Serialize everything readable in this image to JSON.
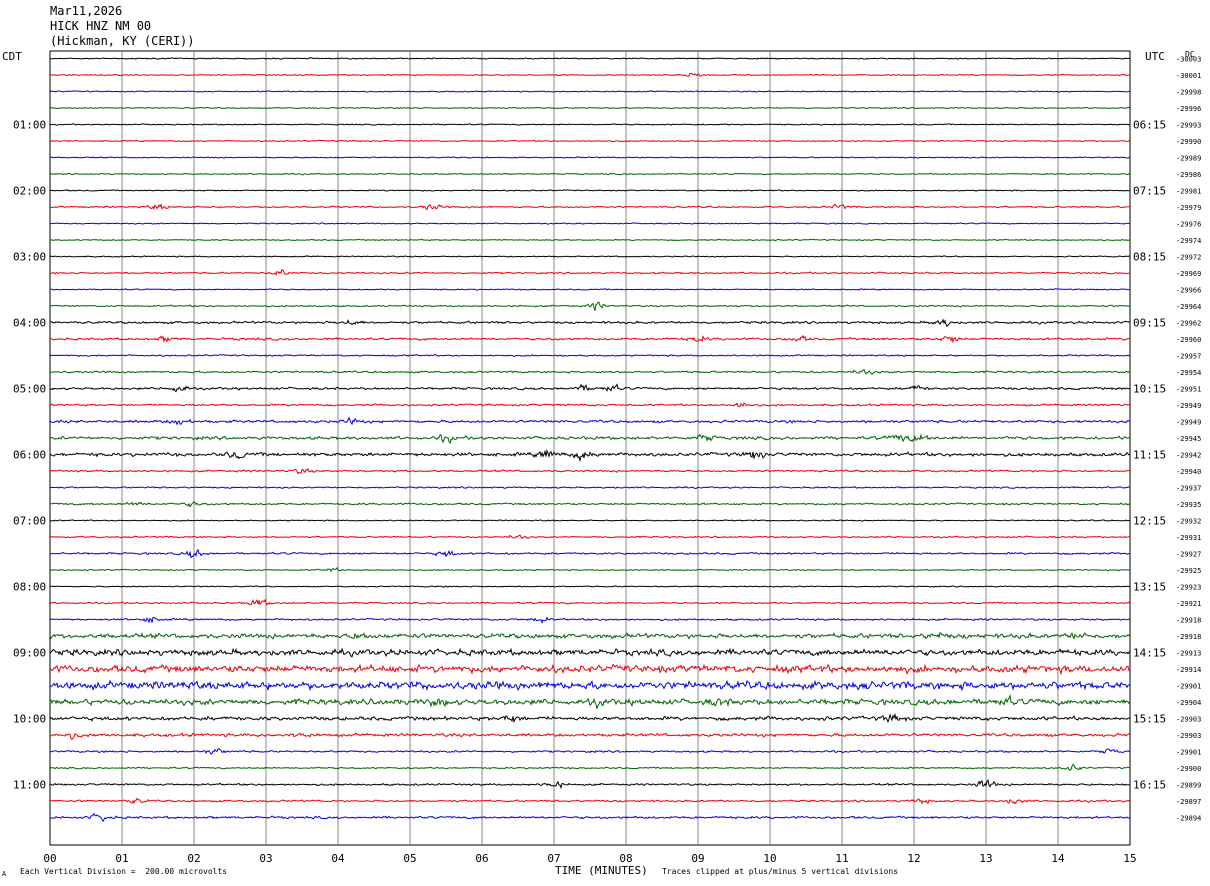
{
  "header": {
    "date": "Mar11,2026",
    "station": "HICK HNZ NM 00",
    "location": "(Hickman, KY (CERI))"
  },
  "left_tz": "CDT",
  "right_tz": "UTC",
  "dc_label": "DC",
  "footer": {
    "scale": "Each Vertical Division =  200.00 microvolts",
    "xtitle": "TIME (MINUTES)",
    "clip": "Traces clipped at plus/minus 5 vertical divisions",
    "corner": "A"
  },
  "colors": {
    "traces": [
      "#000000",
      "#e8000b",
      "#0000e6",
      "#006400"
    ],
    "grid": "#888888"
  },
  "chart_data": {
    "type": "line",
    "title": "",
    "xlabel": "TIME (MINUTES)",
    "ylabel": "",
    "x_ticks": [
      "00",
      "01",
      "02",
      "03",
      "04",
      "05",
      "06",
      "07",
      "08",
      "09",
      "10",
      "11",
      "12",
      "13",
      "14",
      "15"
    ],
    "xlim": [
      0,
      15
    ],
    "left_hour_labels": [
      "01:00",
      "02:00",
      "03:00",
      "04:00",
      "05:00",
      "06:00",
      "07:00",
      "08:00",
      "09:00",
      "10:00",
      "11:00"
    ],
    "right_hour_labels": [
      "06:15",
      "07:15",
      "08:15",
      "09:15",
      "10:15",
      "11:15",
      "12:15",
      "13:15",
      "14:15",
      "15:15",
      "16:15"
    ],
    "dc_offsets": [
      "-30003",
      "-30001",
      "-29998",
      "-29996",
      "-29993",
      "-29990",
      "-29989",
      "-29986",
      "-29981",
      "-29979",
      "-29976",
      "-29974",
      "-29972",
      "-29969",
      "-29966",
      "-29964",
      "-29962",
      "-29960",
      "-29957",
      "-29954",
      "-29951",
      "-29949",
      "-29949",
      "-29945",
      "-29942",
      "-29940",
      "-29937",
      "-29935",
      "-29932",
      "-29931",
      "-29927",
      "-29925",
      "-29923",
      "-29921",
      "-29918",
      "-29918",
      "-29913",
      "-29914",
      "-29901",
      "-29904",
      "-29903",
      "-29903",
      "-29901",
      "-29900",
      "-29899",
      "-29897",
      "-29894"
    ],
    "trace_count": 47,
    "trace_amplitude": [
      0.3,
      0.3,
      0.3,
      0.3,
      0.3,
      0.3,
      0.3,
      0.3,
      0.3,
      0.4,
      0.3,
      0.3,
      0.3,
      0.4,
      0.3,
      0.4,
      0.6,
      0.6,
      0.4,
      0.5,
      0.6,
      0.5,
      0.7,
      0.8,
      0.9,
      0.5,
      0.4,
      0.5,
      0.3,
      0.4,
      0.5,
      0.3,
      0.3,
      0.4,
      0.5,
      1.2,
      1.6,
      1.9,
      2.0,
      1.5,
      1.0,
      0.8,
      0.5,
      0.4,
      0.5,
      0.5,
      0.6
    ],
    "events": [
      {
        "trace": 1,
        "minute": 8.95,
        "amp": 1.2
      },
      {
        "trace": 9,
        "minute": 1.5,
        "amp": 1.4
      },
      {
        "trace": 9,
        "minute": 5.3,
        "amp": 1.4
      },
      {
        "trace": 9,
        "minute": 10.95,
        "amp": 1.4
      },
      {
        "trace": 13,
        "minute": 3.2,
        "amp": 1.6
      },
      {
        "trace": 15,
        "minute": 7.6,
        "amp": 2.0
      },
      {
        "trace": 16,
        "minute": 4.2,
        "amp": 1.3
      },
      {
        "trace": 16,
        "minute": 12.4,
        "amp": 2.0
      },
      {
        "trace": 17,
        "minute": 1.6,
        "amp": 1.2
      },
      {
        "trace": 17,
        "minute": 9.0,
        "amp": 1.4
      },
      {
        "trace": 17,
        "minute": 10.4,
        "amp": 1.4
      },
      {
        "trace": 17,
        "minute": 12.5,
        "amp": 2.0
      },
      {
        "trace": 19,
        "minute": 11.3,
        "amp": 1.3
      },
      {
        "trace": 20,
        "minute": 1.8,
        "amp": 2.0
      },
      {
        "trace": 20,
        "minute": 7.4,
        "amp": 1.5
      },
      {
        "trace": 20,
        "minute": 7.8,
        "amp": 1.5
      },
      {
        "trace": 20,
        "minute": 12.05,
        "amp": 1.2
      },
      {
        "trace": 21,
        "minute": 9.6,
        "amp": 1.6
      },
      {
        "trace": 22,
        "minute": 1.8,
        "amp": 1.5
      },
      {
        "trace": 22,
        "minute": 4.2,
        "amp": 1.5
      },
      {
        "trace": 23,
        "minute": 5.5,
        "amp": 1.5
      },
      {
        "trace": 23,
        "minute": 9.1,
        "amp": 1.8
      },
      {
        "trace": 23,
        "minute": 11.8,
        "amp": 1.8
      },
      {
        "trace": 23,
        "minute": 12.1,
        "amp": 1.8
      },
      {
        "trace": 24,
        "minute": 2.6,
        "amp": 2.0
      },
      {
        "trace": 24,
        "minute": 6.9,
        "amp": 2.2
      },
      {
        "trace": 24,
        "minute": 7.4,
        "amp": 2.5
      },
      {
        "trace": 24,
        "minute": 9.8,
        "amp": 2.0
      },
      {
        "trace": 25,
        "minute": 3.5,
        "amp": 1.3
      },
      {
        "trace": 27,
        "minute": 1.2,
        "amp": 1.0
      },
      {
        "trace": 27,
        "minute": 2.0,
        "amp": 1.2
      },
      {
        "trace": 29,
        "minute": 6.5,
        "amp": 1.2
      },
      {
        "trace": 30,
        "minute": 2.0,
        "amp": 2.0
      },
      {
        "trace": 30,
        "minute": 5.5,
        "amp": 1.5
      },
      {
        "trace": 31,
        "minute": 3.9,
        "amp": 1.0
      },
      {
        "trace": 33,
        "minute": 2.9,
        "amp": 2.0
      },
      {
        "trace": 34,
        "minute": 1.4,
        "amp": 1.5
      },
      {
        "trace": 34,
        "minute": 6.8,
        "amp": 1.4
      },
      {
        "trace": 35,
        "minute": 4.3,
        "amp": 1.3
      },
      {
        "trace": 35,
        "minute": 12.3,
        "amp": 1.3
      },
      {
        "trace": 35,
        "minute": 14.3,
        "amp": 1.3
      },
      {
        "trace": 39,
        "minute": 5.4,
        "amp": 1.3
      },
      {
        "trace": 39,
        "minute": 7.6,
        "amp": 1.2
      },
      {
        "trace": 39,
        "minute": 9.3,
        "amp": 1.2
      },
      {
        "trace": 39,
        "minute": 13.3,
        "amp": 1.2
      },
      {
        "trace": 40,
        "minute": 6.4,
        "amp": 1.6
      },
      {
        "trace": 40,
        "minute": 11.7,
        "amp": 1.6
      },
      {
        "trace": 41,
        "minute": 0.3,
        "amp": 1.4
      },
      {
        "trace": 41,
        "minute": 3.5,
        "amp": 1.2
      },
      {
        "trace": 42,
        "minute": 2.3,
        "amp": 1.5
      },
      {
        "trace": 42,
        "minute": 14.7,
        "amp": 1.2
      },
      {
        "trace": 43,
        "minute": 14.2,
        "amp": 1.8
      },
      {
        "trace": 44,
        "minute": 7.0,
        "amp": 2.0
      },
      {
        "trace": 44,
        "minute": 13.0,
        "amp": 2.5
      },
      {
        "trace": 45,
        "minute": 1.2,
        "amp": 1.2
      },
      {
        "trace": 45,
        "minute": 12.1,
        "amp": 1.2
      },
      {
        "trace": 45,
        "minute": 13.4,
        "amp": 1.3
      },
      {
        "trace": 46,
        "minute": 0.7,
        "amp": 2.2
      }
    ]
  }
}
